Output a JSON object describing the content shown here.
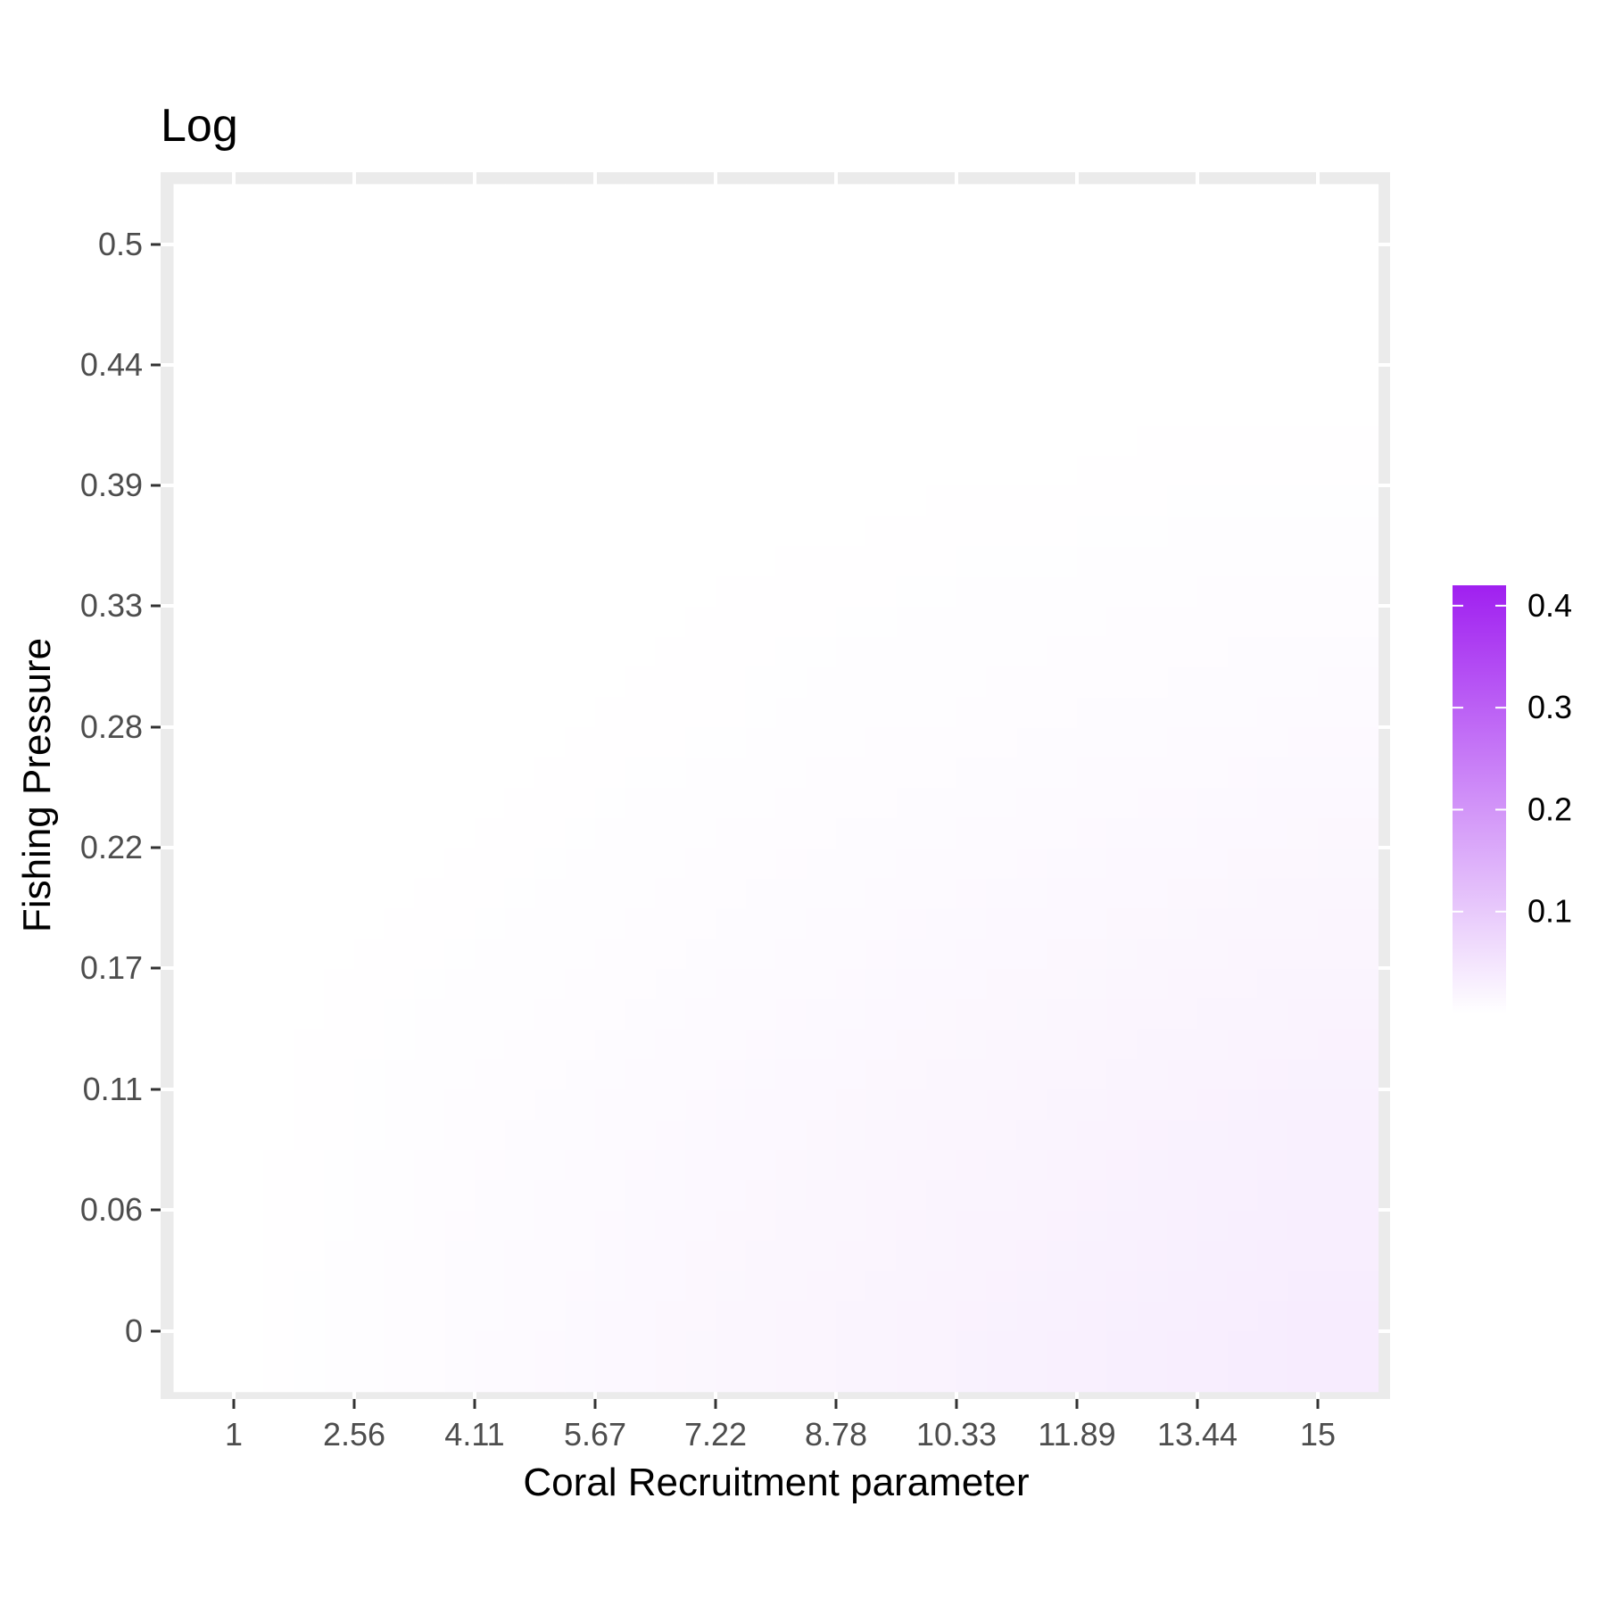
{
  "chart_data": {
    "type": "heatmap",
    "title": "Log",
    "xlabel": "Coral Recruitment parameter",
    "ylabel": "Fishing Pressure",
    "x_ticks": [
      "1",
      "2.56",
      "4.11",
      "5.67",
      "7.22",
      "8.78",
      "10.33",
      "11.89",
      "13.44",
      "15"
    ],
    "y_ticks": [
      "0",
      "0.06",
      "0.11",
      "0.17",
      "0.22",
      "0.28",
      "0.33",
      "0.39",
      "0.44",
      "0.5"
    ],
    "x_values": [
      1,
      2.56,
      4.11,
      5.67,
      7.22,
      8.78,
      10.33,
      11.89,
      13.44,
      15
    ],
    "y_values": [
      0,
      0.06,
      0.11,
      0.17,
      0.22,
      0.28,
      0.33,
      0.39,
      0.44,
      0.5
    ],
    "xlim": [
      1,
      15
    ],
    "ylim": [
      0,
      0.5
    ],
    "z": [
      [
        0.0,
        0.004,
        0.008,
        0.012,
        0.016,
        0.02,
        0.024,
        0.028,
        0.032,
        0.036
      ],
      [
        0.0,
        0.003,
        0.007,
        0.01,
        0.014,
        0.017,
        0.021,
        0.024,
        0.028,
        0.031
      ],
      [
        0.0,
        0.002,
        0.005,
        0.008,
        0.011,
        0.014,
        0.017,
        0.02,
        0.023,
        0.026
      ],
      [
        0.0,
        0.001,
        0.003,
        0.005,
        0.008,
        0.01,
        0.013,
        0.015,
        0.018,
        0.02
      ],
      [
        0.0,
        0.0,
        0.001,
        0.003,
        0.005,
        0.007,
        0.009,
        0.011,
        0.013,
        0.015
      ],
      [
        0.0,
        0.0,
        0.0,
        0.001,
        0.002,
        0.004,
        0.005,
        0.007,
        0.008,
        0.01
      ],
      [
        0.0,
        0.0,
        0.0,
        0.0,
        0.001,
        0.002,
        0.003,
        0.004,
        0.005,
        0.006
      ],
      [
        0.0,
        0.0,
        0.0,
        0.0,
        0.0,
        0.0,
        0.001,
        0.001,
        0.002,
        0.002
      ],
      [
        0.0,
        0.0,
        0.0,
        0.0,
        0.0,
        0.0,
        0.0,
        0.0,
        0.0,
        0.0
      ],
      [
        0.0,
        0.0,
        0.0,
        0.0,
        0.0,
        0.0,
        0.0,
        0.0,
        0.0,
        0.0
      ]
    ],
    "z_range": [
      0,
      0.42
    ],
    "legend": {
      "position": "right",
      "ticks": [
        0.1,
        0.2,
        0.3,
        0.4
      ],
      "tick_labels": [
        "0.1",
        "0.2",
        "0.3",
        "0.4"
      ]
    },
    "colors": {
      "low": "#ffffff",
      "high": "#a020f0",
      "panel_background": "#ebebeb",
      "grid": "#ffffff"
    },
    "grid": true
  }
}
